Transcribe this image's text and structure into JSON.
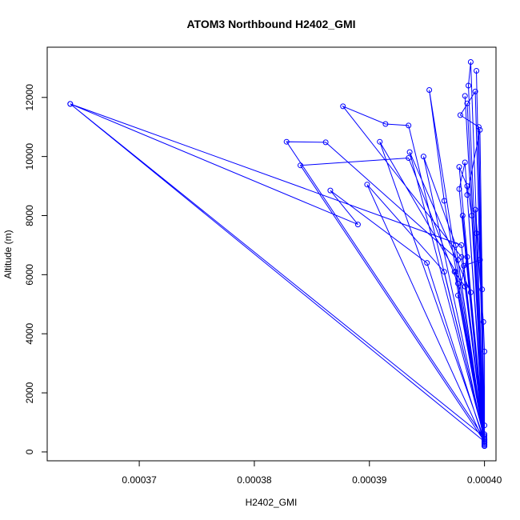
{
  "chart_data": {
    "type": "line",
    "title": "ATOM3 Northbound H2402_GMI",
    "xlabel": "H2402_GMI",
    "ylabel": "Altitude (m)",
    "xlim": [
      0.000362,
      0.000401
    ],
    "ylim": [
      -300,
      13700
    ],
    "x_ticks": [
      0.00037,
      0.00038,
      0.00039,
      0.0004
    ],
    "x_tick_labels": [
      "0.00037",
      "0.00038",
      "0.00039",
      "0.00040"
    ],
    "y_ticks": [
      0,
      2000,
      4000,
      6000,
      8000,
      10000,
      12000
    ],
    "y_tick_labels": [
      "0",
      "2000",
      "4000",
      "6000",
      "8000",
      "10000",
      "12000"
    ],
    "markers": "open-circle",
    "grid": false,
    "series": [
      {
        "color": "#0000ff",
        "points": [
          [
            0.0004,
            200
          ],
          [
            0.0003986,
            12400
          ],
          [
            0.0003988,
            13200
          ],
          [
            0.0004,
            250
          ],
          [
            0.0003993,
            12900
          ],
          [
            0.0004,
            300
          ],
          [
            0.0003985,
            11800
          ],
          [
            0.0004,
            400
          ],
          [
            0.0003952,
            12250
          ],
          [
            0.0003965,
            8500
          ],
          [
            0.0004,
            450
          ],
          [
            0.0003934,
            11050
          ],
          [
            0.0003914,
            11100
          ],
          [
            0.0003877,
            11700
          ],
          [
            0.000398,
            6600
          ],
          [
            0.0004,
            500
          ],
          [
            0.000364,
            11780
          ],
          [
            0.000398,
            7000
          ],
          [
            0.0004,
            350
          ],
          [
            0.000364,
            11780
          ],
          [
            0.000389,
            7700
          ],
          [
            0.0003866,
            8850
          ],
          [
            0.000395,
            6400
          ],
          [
            0.0004,
            300
          ],
          [
            0.0003983,
            12050
          ],
          [
            0.0004,
            450
          ],
          [
            0.0003828,
            10500
          ],
          [
            0.0003862,
            10480
          ],
          [
            0.0003977,
            6500
          ],
          [
            0.0004,
            350
          ],
          [
            0.000384,
            9700
          ],
          [
            0.0003934,
            9950
          ],
          [
            0.0003977,
            5700
          ],
          [
            0.0004,
            400
          ],
          [
            0.0003909,
            10500
          ],
          [
            0.0003975,
            6100
          ],
          [
            0.0004,
            350
          ],
          [
            0.0003947,
            10000
          ],
          [
            0.0003975,
            7000
          ],
          [
            0.0004,
            300
          ],
          [
            0.0003898,
            9050
          ],
          [
            0.0003965,
            6100
          ],
          [
            0.0004,
            450
          ],
          [
            0.0003935,
            10150
          ],
          [
            0.0003988,
            5400
          ],
          [
            0.0004,
            300
          ],
          [
            0.0003981,
            8000
          ],
          [
            0.0004,
            350
          ],
          [
            0.0003996,
            10900
          ],
          [
            0.0003985,
            8700
          ],
          [
            0.0004,
            600
          ],
          [
            0.0003992,
            12200
          ],
          [
            0.0003979,
            11400
          ],
          [
            0.0003995,
            11000
          ],
          [
            0.0004,
            250
          ],
          [
            0.0003983,
            9800
          ],
          [
            0.0003978,
            8900
          ],
          [
            0.0004,
            200
          ],
          [
            0.0003993,
            7400
          ],
          [
            0.0003999,
            4400
          ],
          [
            0.0004,
            3400
          ],
          [
            0.0004,
            550
          ],
          [
            0.0003985,
            6600
          ],
          [
            0.0003977,
            5300
          ],
          [
            0.0004,
            350
          ],
          [
            0.0003978,
            9650
          ],
          [
            0.0003985,
            9000
          ],
          [
            0.0003989,
            8000
          ],
          [
            0.0004,
            900
          ],
          [
            0.0003996,
            6500
          ],
          [
            0.0003982,
            6300
          ],
          [
            0.0004,
            200
          ],
          [
            0.0003998,
            5500
          ],
          [
            0.0004,
            300
          ],
          [
            0.0003974,
            6100
          ],
          [
            0.0003983,
            5600
          ],
          [
            0.0004,
            400
          ],
          [
            0.0003992,
            8200
          ],
          [
            0.0003996,
            6500
          ],
          [
            0.0004,
            250
          ]
        ]
      }
    ]
  }
}
